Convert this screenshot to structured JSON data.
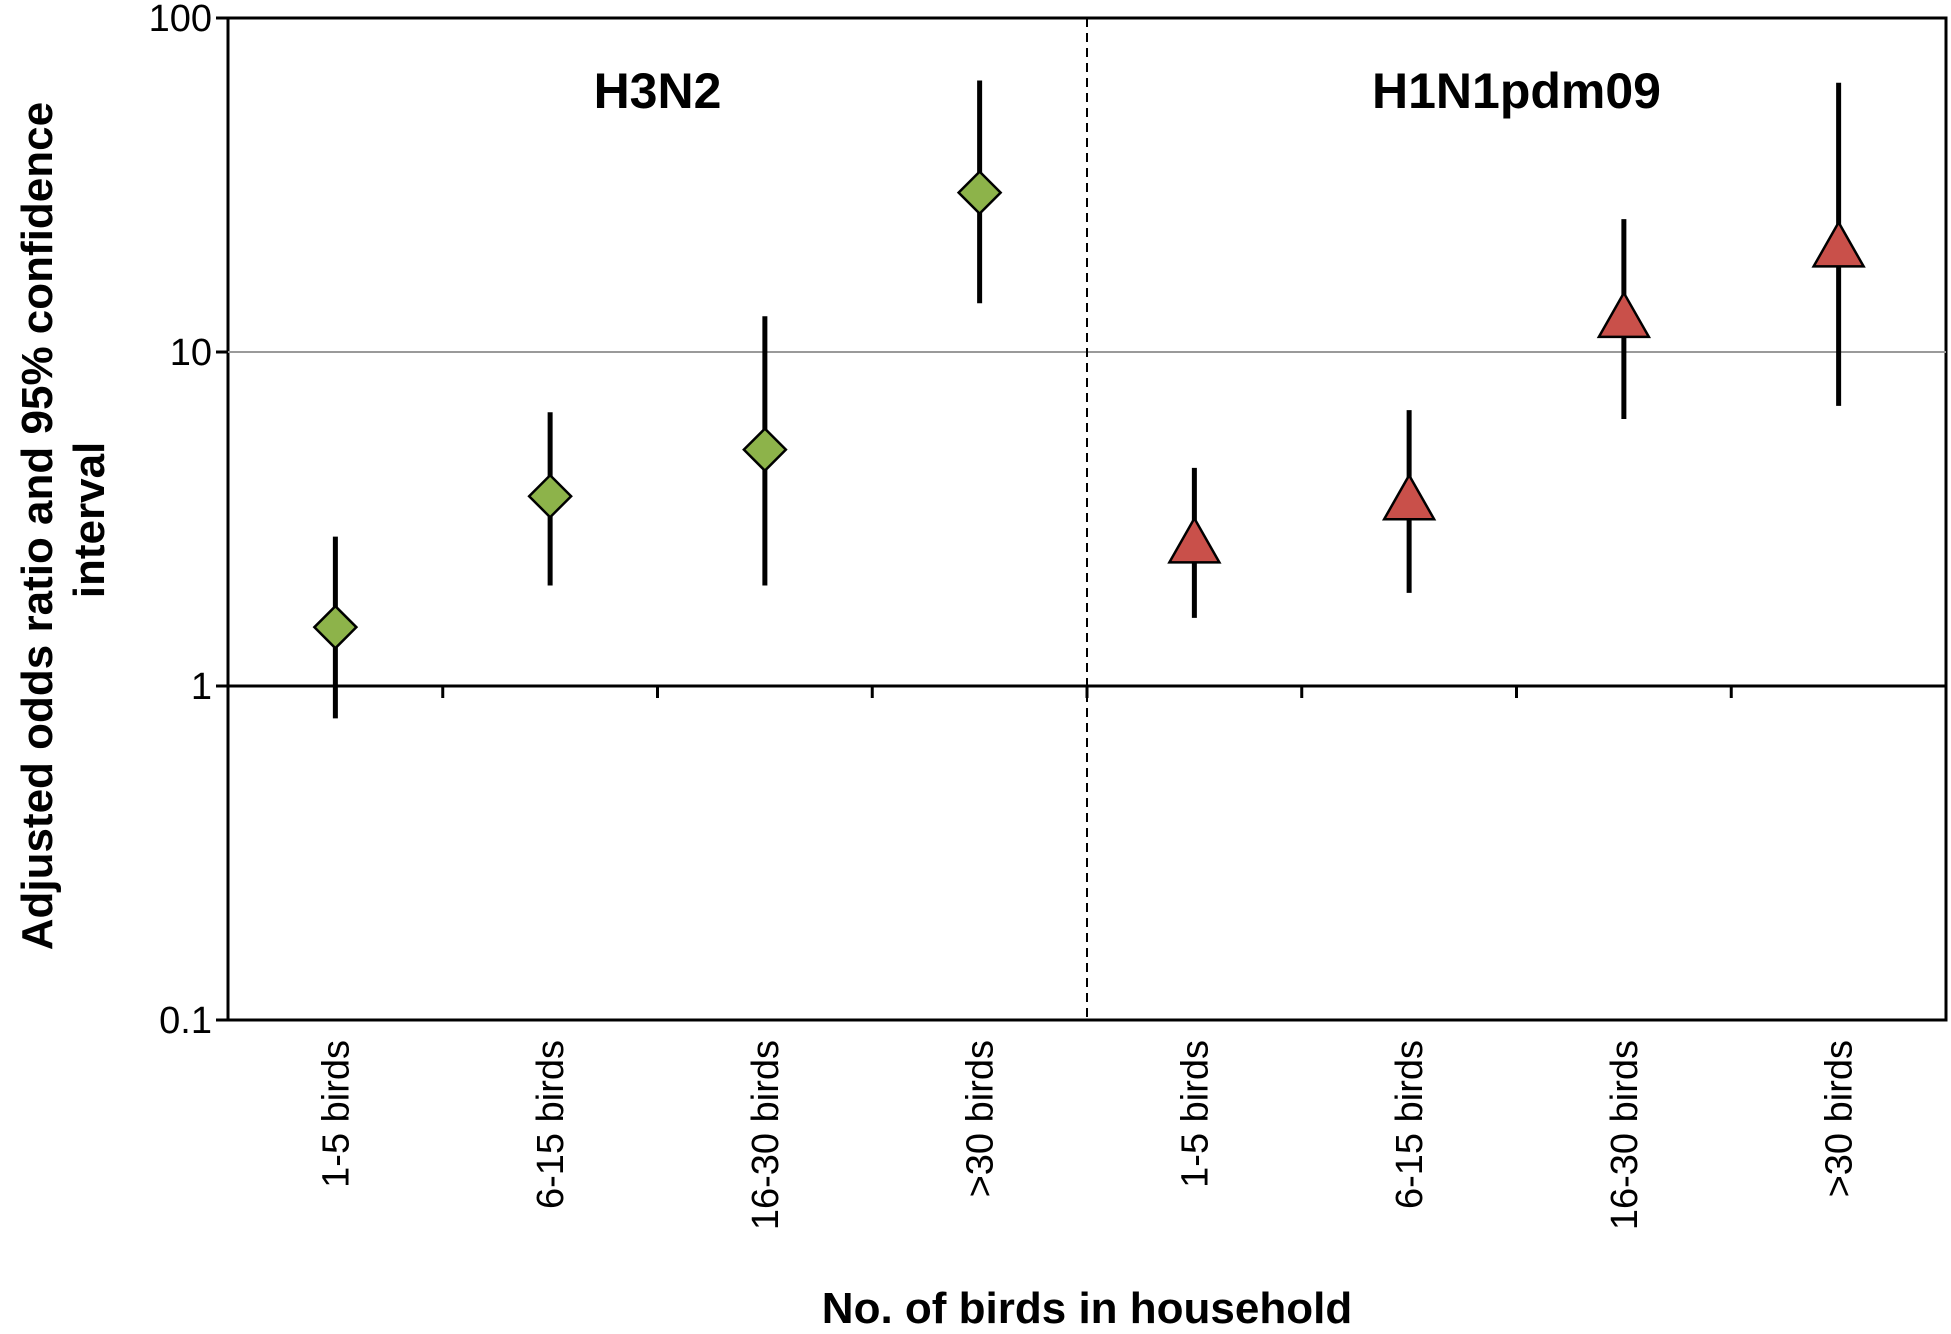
{
  "chart_data": {
    "type": "scatter",
    "y_scale": "log",
    "ylim": [
      0.1,
      100
    ],
    "y_ticks": [
      {
        "value": 0.1,
        "label": "0.1"
      },
      {
        "value": 1,
        "label": "1"
      },
      {
        "value": 10,
        "label": "10"
      },
      {
        "value": 100,
        "label": "100"
      }
    ],
    "reference_lines": [
      1,
      10
    ],
    "ylabel_lines": [
      "Adjusted odds ratio and 95% confidence",
      "interval"
    ],
    "xlabel": "No. of birds in household",
    "categories": [
      "1-5 birds",
      "6-15 birds",
      "16-30 birds",
      ">30 birds",
      "1-5 birds",
      "6-15 birds",
      "16-30 birds",
      ">30 birds"
    ],
    "series": [
      {
        "name": "H3N2",
        "marker": "diamond",
        "color": "#8DB34A",
        "points": [
          {
            "category": "1-5 birds",
            "or": 1.5,
            "ci": [
              0.8,
              2.8
            ]
          },
          {
            "category": "6-15 birds",
            "or": 3.7,
            "ci": [
              2.0,
              6.6
            ]
          },
          {
            "category": "16-30 birds",
            "or": 5.1,
            "ci": [
              2.0,
              12.8
            ]
          },
          {
            "category": ">30 birds",
            "or": 30.0,
            "ci": [
              14.0,
              65.0
            ]
          }
        ]
      },
      {
        "name": "H1N1pdm09",
        "marker": "triangle",
        "color": "#C9504A",
        "points": [
          {
            "category": "1-5 birds",
            "or": 2.6,
            "ci": [
              1.6,
              4.5
            ]
          },
          {
            "category": "6-15 birds",
            "or": 3.5,
            "ci": [
              1.9,
              6.7
            ]
          },
          {
            "category": "16-30 birds",
            "or": 12.3,
            "ci": [
              6.3,
              25.0
            ]
          },
          {
            "category": ">30 birds",
            "or": 20.0,
            "ci": [
              6.9,
              64.0
            ]
          }
        ]
      }
    ],
    "grid": false
  }
}
